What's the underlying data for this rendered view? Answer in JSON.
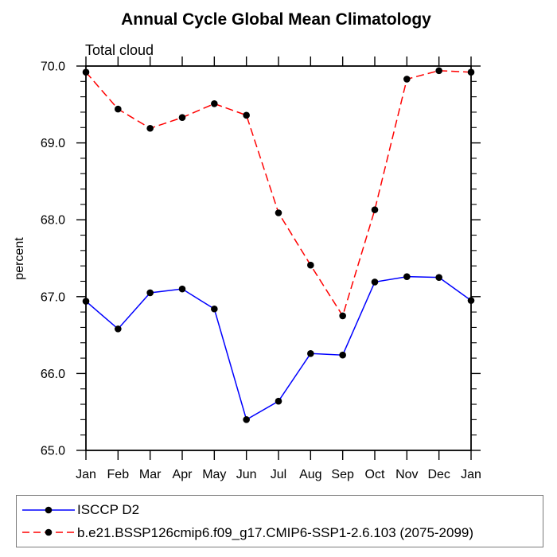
{
  "chart_data": {
    "type": "line",
    "title": "Annual Cycle Global Mean Climatology",
    "subtitle": "Total cloud",
    "ylabel": "percent",
    "categories": [
      "Jan",
      "Feb",
      "Mar",
      "Apr",
      "May",
      "Jun",
      "Jul",
      "Aug",
      "Sep",
      "Oct",
      "Nov",
      "Dec",
      "Jan"
    ],
    "ylim": [
      65.0,
      70.0
    ],
    "ytick_step": 1.0,
    "ytick_minor_step": 0.2,
    "ytick_labels": [
      "65.0",
      "66.0",
      "67.0",
      "68.0",
      "69.0",
      "70.0"
    ],
    "grid": false,
    "legend_position": "bottom",
    "axis_color": "#000000",
    "marker_color": "#000000",
    "series": [
      {
        "name": "ISCCP D2",
        "color": "#0000ff",
        "line_style": "solid",
        "marker": "circle",
        "values": [
          66.94,
          66.58,
          67.05,
          67.1,
          66.84,
          65.4,
          65.64,
          66.26,
          66.24,
          67.19,
          67.26,
          67.25,
          66.95
        ]
      },
      {
        "name": "b.e21.BSSP126cmip6.f09_g17.CMIP6-SSP1-2.6.103 (2075-2099)",
        "color": "#ff0000",
        "line_style": "dashed",
        "marker": "circle",
        "values": [
          69.92,
          69.44,
          69.19,
          69.33,
          69.51,
          69.36,
          68.09,
          67.41,
          66.75,
          68.13,
          69.83,
          69.94,
          69.92
        ]
      }
    ]
  }
}
